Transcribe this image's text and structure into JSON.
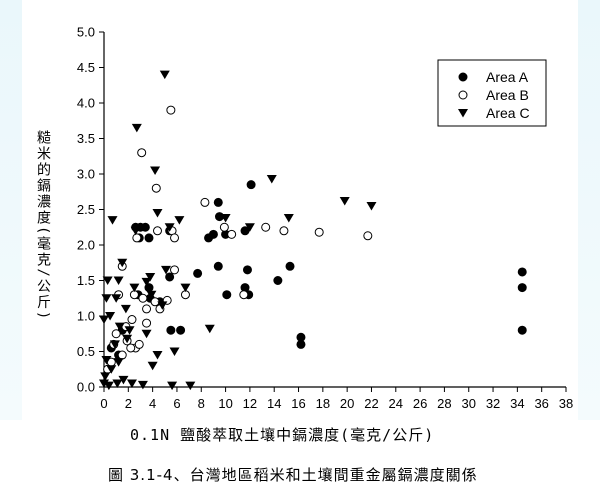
{
  "chart_data": {
    "type": "scatter",
    "title": "",
    "xlabel": "0.1N 鹽酸萃取土壤中鎘濃度(毫克/公斤)",
    "ylabel": "糙米的鎘濃度(毫克/公斤)",
    "xlim": [
      0,
      38
    ],
    "ylim": [
      0,
      5.0
    ],
    "x_ticks": [
      "0",
      "2",
      "4",
      "6",
      "8",
      "10",
      "12",
      "14",
      "16",
      "18",
      "20",
      "22",
      "24",
      "26",
      "28",
      "30",
      "32",
      "34",
      "36",
      "38"
    ],
    "y_ticks": [
      "0.0",
      "0.5",
      "1.0",
      "1.5",
      "2.0",
      "2.5",
      "3.0",
      "3.5",
      "4.0",
      "4.5",
      "5.0"
    ],
    "legend_position": "top-right",
    "grid": false,
    "series": [
      {
        "name": "Area A",
        "marker": "filled-circle",
        "color": "#000000",
        "points": [
          [
            2.6,
            2.25
          ],
          [
            3.0,
            2.25
          ],
          [
            3.4,
            2.25
          ],
          [
            3.7,
            2.1
          ],
          [
            2.9,
            2.1
          ],
          [
            5.4,
            2.2
          ],
          [
            5.4,
            1.55
          ],
          [
            5.5,
            0.8
          ],
          [
            6.3,
            0.8
          ],
          [
            9.4,
            2.6
          ],
          [
            9.5,
            2.4
          ],
          [
            9.0,
            2.15
          ],
          [
            10.0,
            2.15
          ],
          [
            8.6,
            2.1
          ],
          [
            11.6,
            2.2
          ],
          [
            12.1,
            2.85
          ],
          [
            7.7,
            1.6
          ],
          [
            9.4,
            1.7
          ],
          [
            11.8,
            1.65
          ],
          [
            10.1,
            1.3
          ],
          [
            11.6,
            1.4
          ],
          [
            11.9,
            1.3
          ],
          [
            14.3,
            1.5
          ],
          [
            15.3,
            1.7
          ],
          [
            16.2,
            0.7
          ],
          [
            16.2,
            0.6
          ],
          [
            34.4,
            1.62
          ],
          [
            34.4,
            1.4
          ],
          [
            34.4,
            0.8
          ],
          [
            3.7,
            1.4
          ],
          [
            3.8,
            1.25
          ],
          [
            4.6,
            1.2
          ],
          [
            2.8,
            1.3
          ],
          [
            1.5,
            0.8
          ],
          [
            1.2,
            0.45
          ],
          [
            0.6,
            0.55
          ]
        ]
      },
      {
        "name": "Area B",
        "marker": "open-circle",
        "color": "#000000",
        "points": [
          [
            5.5,
            3.9
          ],
          [
            3.1,
            3.3
          ],
          [
            4.3,
            2.8
          ],
          [
            4.4,
            2.2
          ],
          [
            5.6,
            2.2
          ],
          [
            5.8,
            2.1
          ],
          [
            2.7,
            2.1
          ],
          [
            8.3,
            2.6
          ],
          [
            9.9,
            2.25
          ],
          [
            10.5,
            2.15
          ],
          [
            13.3,
            2.25
          ],
          [
            14.8,
            2.2
          ],
          [
            17.7,
            2.18
          ],
          [
            21.7,
            2.13
          ],
          [
            1.5,
            1.7
          ],
          [
            5.8,
            1.65
          ],
          [
            5.2,
            1.22
          ],
          [
            3.2,
            1.25
          ],
          [
            2.5,
            1.3
          ],
          [
            1.2,
            1.3
          ],
          [
            6.7,
            1.3
          ],
          [
            11.5,
            1.3
          ],
          [
            4.2,
            1.2
          ],
          [
            4.6,
            1.1
          ],
          [
            3.5,
            1.1
          ],
          [
            2.3,
            0.95
          ],
          [
            1.8,
            0.85
          ],
          [
            1.0,
            0.75
          ],
          [
            0.8,
            0.6
          ],
          [
            2.6,
            0.55
          ],
          [
            2.2,
            0.55
          ],
          [
            1.5,
            0.45
          ],
          [
            0.6,
            0.35
          ],
          [
            0.3,
            0.25
          ],
          [
            3.5,
            0.9
          ],
          [
            2.9,
            0.6
          ],
          [
            1.9,
            0.65
          ]
        ]
      },
      {
        "name": "Area C",
        "marker": "filled-triangle-down",
        "color": "#000000",
        "points": [
          [
            5.0,
            4.4
          ],
          [
            2.7,
            3.65
          ],
          [
            4.2,
            3.05
          ],
          [
            13.8,
            2.93
          ],
          [
            19.8,
            2.62
          ],
          [
            22.0,
            2.55
          ],
          [
            4.4,
            2.45
          ],
          [
            6.2,
            2.35
          ],
          [
            10.0,
            2.38
          ],
          [
            12.0,
            2.25
          ],
          [
            15.2,
            2.38
          ],
          [
            0.7,
            2.35
          ],
          [
            2.6,
            2.2
          ],
          [
            5.4,
            2.25
          ],
          [
            1.5,
            1.75
          ],
          [
            3.8,
            1.55
          ],
          [
            5.1,
            1.65
          ],
          [
            0.3,
            1.5
          ],
          [
            1.2,
            1.5
          ],
          [
            3.5,
            1.48
          ],
          [
            6.7,
            1.4
          ],
          [
            2.5,
            1.4
          ],
          [
            0.2,
            1.25
          ],
          [
            1.0,
            1.25
          ],
          [
            3.9,
            1.3
          ],
          [
            4.8,
            1.15
          ],
          [
            1.8,
            1.1
          ],
          [
            0.5,
            1.0
          ],
          [
            0.0,
            0.95
          ],
          [
            1.3,
            0.85
          ],
          [
            2.1,
            0.8
          ],
          [
            8.7,
            0.82
          ],
          [
            3.5,
            0.75
          ],
          [
            1.9,
            0.68
          ],
          [
            0.9,
            0.6
          ],
          [
            5.8,
            0.5
          ],
          [
            4.4,
            0.45
          ],
          [
            0.2,
            0.38
          ],
          [
            1.2,
            0.35
          ],
          [
            0.6,
            0.25
          ],
          [
            4.0,
            0.3
          ],
          [
            0.1,
            0.15
          ],
          [
            1.6,
            0.1
          ],
          [
            2.3,
            0.05
          ],
          [
            0.0,
            0.05
          ],
          [
            3.2,
            0.03
          ],
          [
            5.6,
            0.02
          ],
          [
            7.1,
            0.02
          ],
          [
            0.4,
            0.02
          ],
          [
            1.1,
            0.05
          ]
        ]
      }
    ]
  },
  "caption": "圖 3.1-4、台灣地區稻米和土壤間重金屬鎘濃度關係"
}
